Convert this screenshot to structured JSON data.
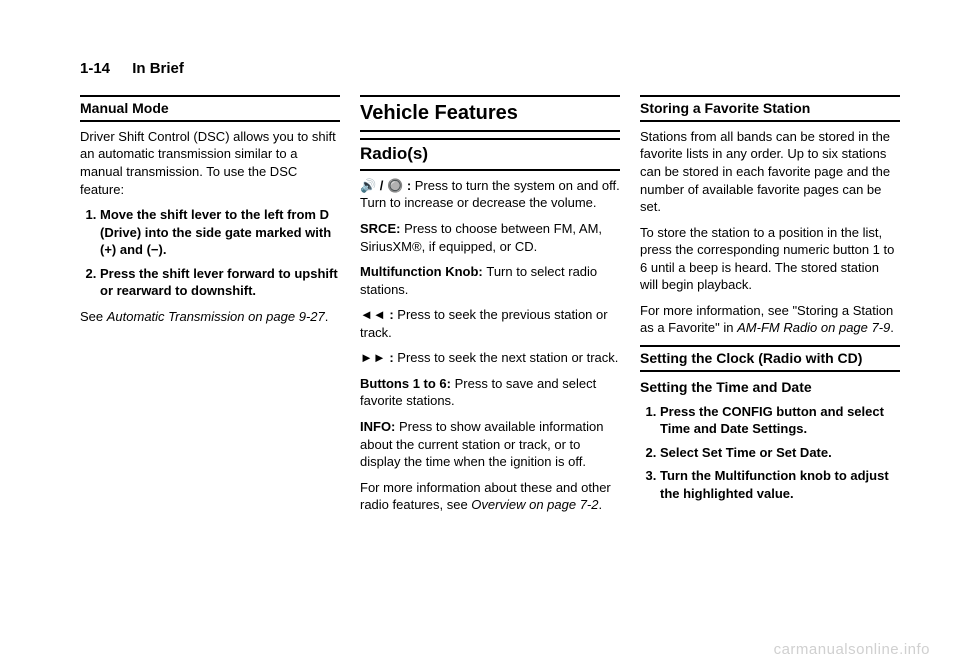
{
  "header": {
    "pagenum": "1-14",
    "chapter": "In Brief"
  },
  "col1": {
    "manual_mode_title": "Manual Mode",
    "dsc_intro": "Driver Shift Control (DSC) allows you to shift an automatic transmission similar to a manual transmission. To use the DSC feature:",
    "step1": "Move the shift lever to the left from D (Drive) into the side gate marked with (+) and (−).",
    "step2": "Press the shift lever forward to upshift or rearward to downshift.",
    "see_text": "See ",
    "see_ref": "Automatic Transmission on page 9-27",
    "see_period": "."
  },
  "col2": {
    "vehicle_features": "Vehicle Features",
    "radios": "Radio(s)",
    "power_label": "🔊 / 🔘 : ",
    "power_text": "Press to turn the system on and off. Turn to increase or decrease the volume.",
    "srce_label": "SRCE: ",
    "srce_text": "Press to choose between FM, AM, SiriusXM®, if equipped, or CD.",
    "multi_label": "Multifunction Knob: ",
    "multi_text": "Turn to select radio stations.",
    "prev_label": "◄◄ : ",
    "prev_text": "Press to seek the previous station or track.",
    "next_label": "►► : ",
    "next_text": "Press to seek the next station or track.",
    "buttons_label": "Buttons 1 to 6: ",
    "buttons_text": "Press to save and select favorite stations.",
    "info_label": "INFO: ",
    "info_text": "Press to show available information about the current station or track, or to display the time when the ignition is off.",
    "more_text": "For more information about these and other radio features, see ",
    "more_ref": "Overview on page 7-2",
    "more_period": "."
  },
  "col3": {
    "storing_title": "Storing a Favorite Station",
    "storing_para1": "Stations from all bands can be stored in the favorite lists in any order. Up to six stations can be stored in each favorite page and the number of available favorite pages can be set.",
    "storing_para2": "To store the station to a position in the list, press the corresponding numeric button 1 to 6 until a beep is heard. The stored station will begin playback.",
    "storing_more1": "For more information, see \"Storing a Station as a Favorite\" in ",
    "storing_ref": "AM-FM Radio on page 7-9",
    "storing_period": ".",
    "clock_title": "Setting the Clock (Radio with CD)",
    "clock_sub": "Setting the Time and Date",
    "clock_step1": "Press the CONFIG button and select Time and Date Settings.",
    "clock_step2": "Select Set Time or Set Date.",
    "clock_step3": "Turn the Multifunction knob to adjust the highlighted value."
  },
  "watermark": "carmanualsonline.info"
}
